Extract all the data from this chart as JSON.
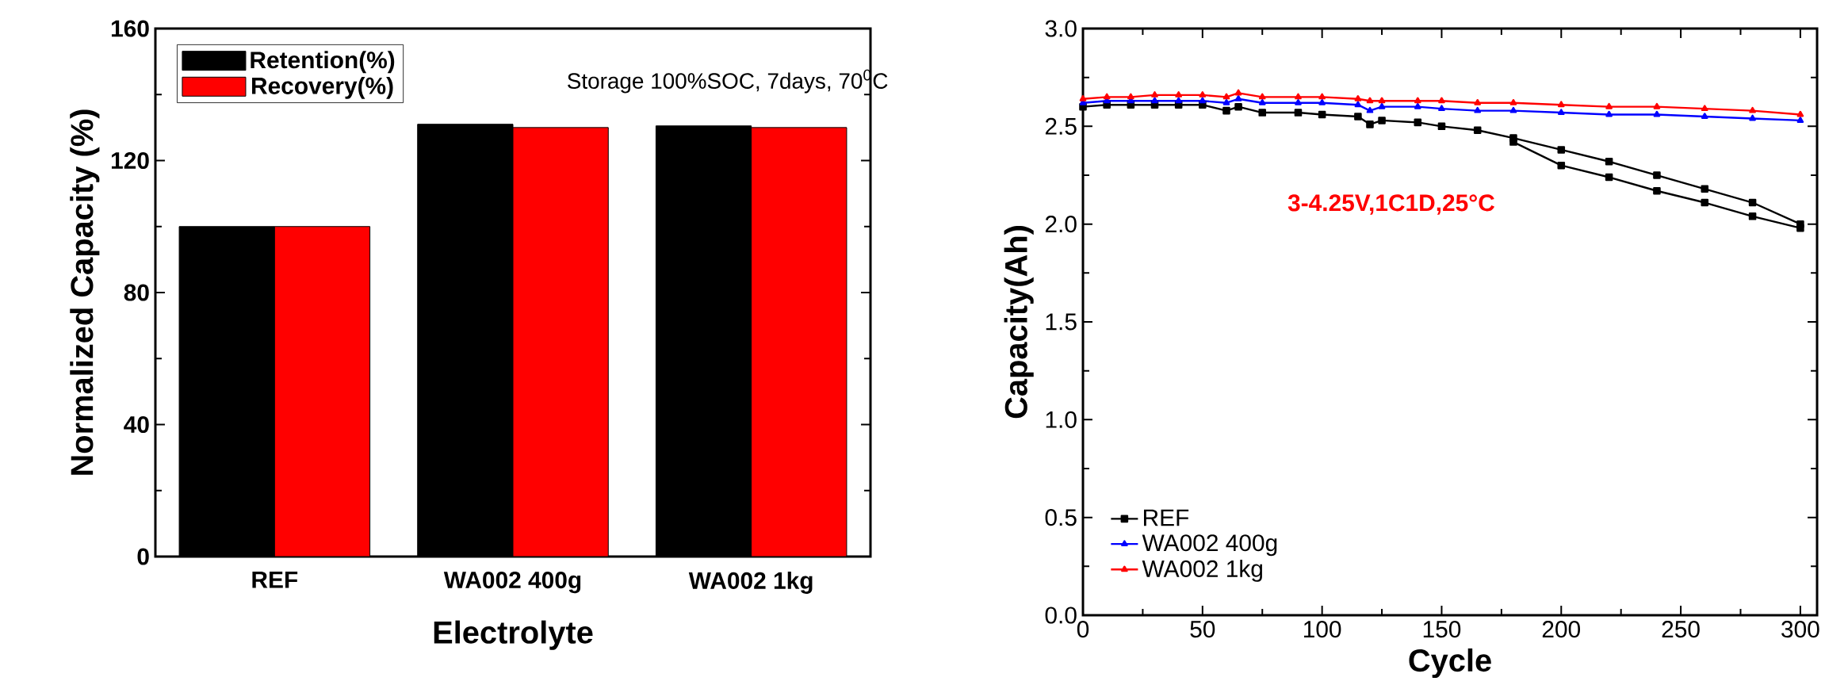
{
  "chart_data": [
    {
      "type": "bar",
      "xlabel": "Electrolyte",
      "ylabel": "Normalized Capacity (%)",
      "categories": [
        "REF",
        "WA002 400g",
        "WA002 1kg"
      ],
      "series": [
        {
          "name": "Retention(%)",
          "color": "#000000",
          "values": [
            100,
            131,
            130.5
          ]
        },
        {
          "name": "Recovery(%)",
          "color": "#ff0000",
          "values": [
            100,
            130,
            130
          ]
        }
      ],
      "ylim": [
        0,
        160
      ],
      "yticks": [
        0,
        40,
        80,
        120,
        160
      ],
      "legend": "top left",
      "annotations": [
        "Storage 100%SOC, 7days, 70$^{0}$C"
      ]
    },
    {
      "type": "line",
      "xlabel": "Cycle",
      "ylabel": "Capacity(Ah)",
      "x": [
        0,
        10,
        20,
        30,
        40,
        50,
        60,
        65,
        75,
        90,
        100,
        115,
        120,
        125,
        140,
        150,
        165,
        180,
        200,
        220,
        240,
        260,
        280,
        300
      ],
      "series": [
        {
          "name": "REF",
          "color": "#000000",
          "marker": "square",
          "values": [
            2.6,
            2.61,
            2.61,
            2.61,
            2.61,
            2.61,
            2.58,
            2.6,
            2.57,
            2.57,
            2.56,
            2.55,
            2.51,
            2.53,
            2.52,
            2.5,
            2.48,
            2.44,
            2.38,
            2.32,
            2.25,
            2.18,
            2.11,
            2.0
          ]
        },
        {
          "color": "#000000",
          "marker": "square",
          "x": [
            180,
            200,
            220,
            240,
            260,
            280,
            300
          ],
          "values": [
            2.42,
            2.3,
            2.24,
            2.17,
            2.11,
            2.04,
            1.98
          ]
        },
        {
          "name": "WA002 400g",
          "color": "#0000ff",
          "marker": "triangle",
          "values": [
            2.62,
            2.63,
            2.63,
            2.63,
            2.63,
            2.63,
            2.62,
            2.64,
            2.62,
            2.62,
            2.62,
            2.61,
            2.58,
            2.6,
            2.6,
            2.59,
            2.58,
            2.58,
            2.57,
            2.56,
            2.56,
            2.55,
            2.54,
            2.53
          ]
        },
        {
          "name": "WA002 1kg",
          "color": "#ff0000",
          "marker": "triangle",
          "values": [
            2.64,
            2.65,
            2.65,
            2.66,
            2.66,
            2.66,
            2.65,
            2.67,
            2.65,
            2.65,
            2.65,
            2.64,
            2.63,
            2.63,
            2.63,
            2.63,
            2.62,
            2.62,
            2.61,
            2.6,
            2.6,
            2.59,
            2.58,
            2.56
          ]
        }
      ],
      "xlim": [
        0,
        307
      ],
      "xticks": [
        0,
        50,
        100,
        150,
        200,
        250,
        300
      ],
      "ylim": [
        0,
        3
      ],
      "yticks": [
        {
          "value": 0,
          "label": "0.0"
        },
        {
          "value": 0.5,
          "label": "0.5"
        },
        {
          "value": 1,
          "label": "1.0"
        },
        {
          "value": 1.5,
          "label": "1.5"
        },
        {
          "value": 2,
          "label": "2.0"
        },
        {
          "value": 2.5,
          "label": "2.5"
        },
        {
          "value": 3,
          "label": "3.0"
        }
      ],
      "legend": "bottom left",
      "annotations": [
        "3-4.25V,1C1D,25°C"
      ]
    }
  ]
}
